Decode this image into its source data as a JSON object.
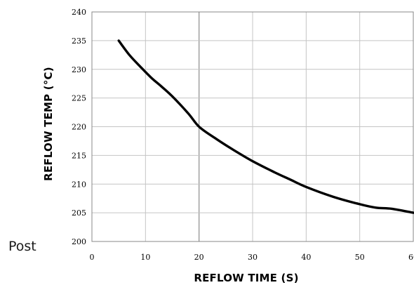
{
  "post_label": "Post",
  "chart_data": {
    "type": "line",
    "title": "",
    "xlabel": "REFLOW TIME (S)",
    "ylabel": "REFLOW TEMP (°C)",
    "xlim": [
      0,
      60
    ],
    "ylim": [
      200,
      240
    ],
    "x_ticks": [
      0,
      10,
      20,
      30,
      40,
      50,
      60
    ],
    "y_ticks": [
      200,
      205,
      210,
      215,
      220,
      225,
      230,
      235,
      240
    ],
    "grid": true,
    "legend": "none",
    "series": [
      {
        "color": "#000000",
        "x": [
          5,
          7,
          9,
          11,
          13,
          15,
          18,
          20,
          23,
          26,
          30,
          34,
          37,
          40,
          45,
          50,
          53,
          56,
          60
        ],
        "y": [
          235,
          232.5,
          230.5,
          228.6,
          227,
          225.3,
          222.3,
          220,
          218,
          216.2,
          214,
          212.1,
          210.8,
          209.5,
          207.8,
          206.5,
          205.9,
          205.7,
          205
        ]
      }
    ]
  }
}
